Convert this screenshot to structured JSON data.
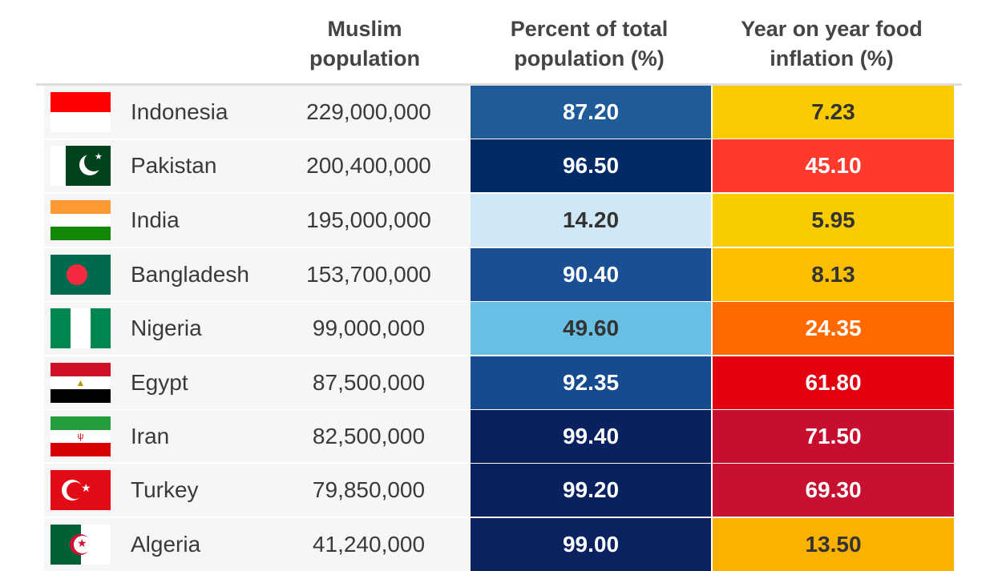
{
  "headers": {
    "population": "Muslim population",
    "percent": "Percent of total population (%)",
    "inflation": "Year on year food inflation (%)"
  },
  "rows": [
    {
      "country": "Indonesia",
      "population": "229,000,000",
      "percent": "87.20",
      "inflation": "7.23",
      "flag": "indonesia-flag",
      "pct_color": "#1f5b99",
      "inf_color": "#f9cb00",
      "pct_text": "#fff",
      "inf_text": "#333"
    },
    {
      "country": "Pakistan",
      "population": "200,400,000",
      "percent": "96.50",
      "inflation": "45.10",
      "flag": "pakistan-flag",
      "pct_color": "#022a66",
      "inf_color": "#ff3a2d",
      "pct_text": "#fff",
      "inf_text": "#fff"
    },
    {
      "country": "India",
      "population": "195,000,000",
      "percent": "14.20",
      "inflation": "5.95",
      "flag": "india-flag",
      "pct_color": "#d0e8f5",
      "inf_color": "#f9cc00",
      "pct_text": "#333",
      "inf_text": "#333"
    },
    {
      "country": "Bangladesh",
      "population": "153,700,000",
      "percent": "90.40",
      "inflation": "8.13",
      "flag": "bangladesh-flag",
      "pct_color": "#1a4f93",
      "inf_color": "#fbbf00",
      "pct_text": "#fff",
      "inf_text": "#333"
    },
    {
      "country": "Nigeria",
      "population": "99,000,000",
      "percent": "49.60",
      "inflation": "24.35",
      "flag": "nigeria-flag",
      "pct_color": "#67bfe4",
      "inf_color": "#ff6a00",
      "pct_text": "#333",
      "inf_text": "#fff"
    },
    {
      "country": "Egypt",
      "population": "87,500,000",
      "percent": "92.35",
      "inflation": "61.80",
      "flag": "egypt-flag",
      "pct_color": "#174b8f",
      "inf_color": "#e3000f",
      "pct_text": "#fff",
      "inf_text": "#fff"
    },
    {
      "country": "Iran",
      "population": "82,500,000",
      "percent": "99.40",
      "inflation": "71.50",
      "flag": "iran-flag",
      "pct_color": "#0a2160",
      "inf_color": "#c70e2e",
      "pct_text": "#fff",
      "inf_text": "#fff"
    },
    {
      "country": "Turkey",
      "population": "79,850,000",
      "percent": "99.20",
      "inflation": "69.30",
      "flag": "turkey-flag",
      "pct_color": "#0a2160",
      "inf_color": "#c81030",
      "pct_text": "#fff",
      "inf_text": "#fff"
    },
    {
      "country": "Algeria",
      "population": "41,240,000",
      "percent": "99.00",
      "inflation": "13.50",
      "flag": "algeria-flag",
      "pct_color": "#0b2260",
      "inf_color": "#fbb100",
      "pct_text": "#fff",
      "inf_text": "#333"
    }
  ]
}
